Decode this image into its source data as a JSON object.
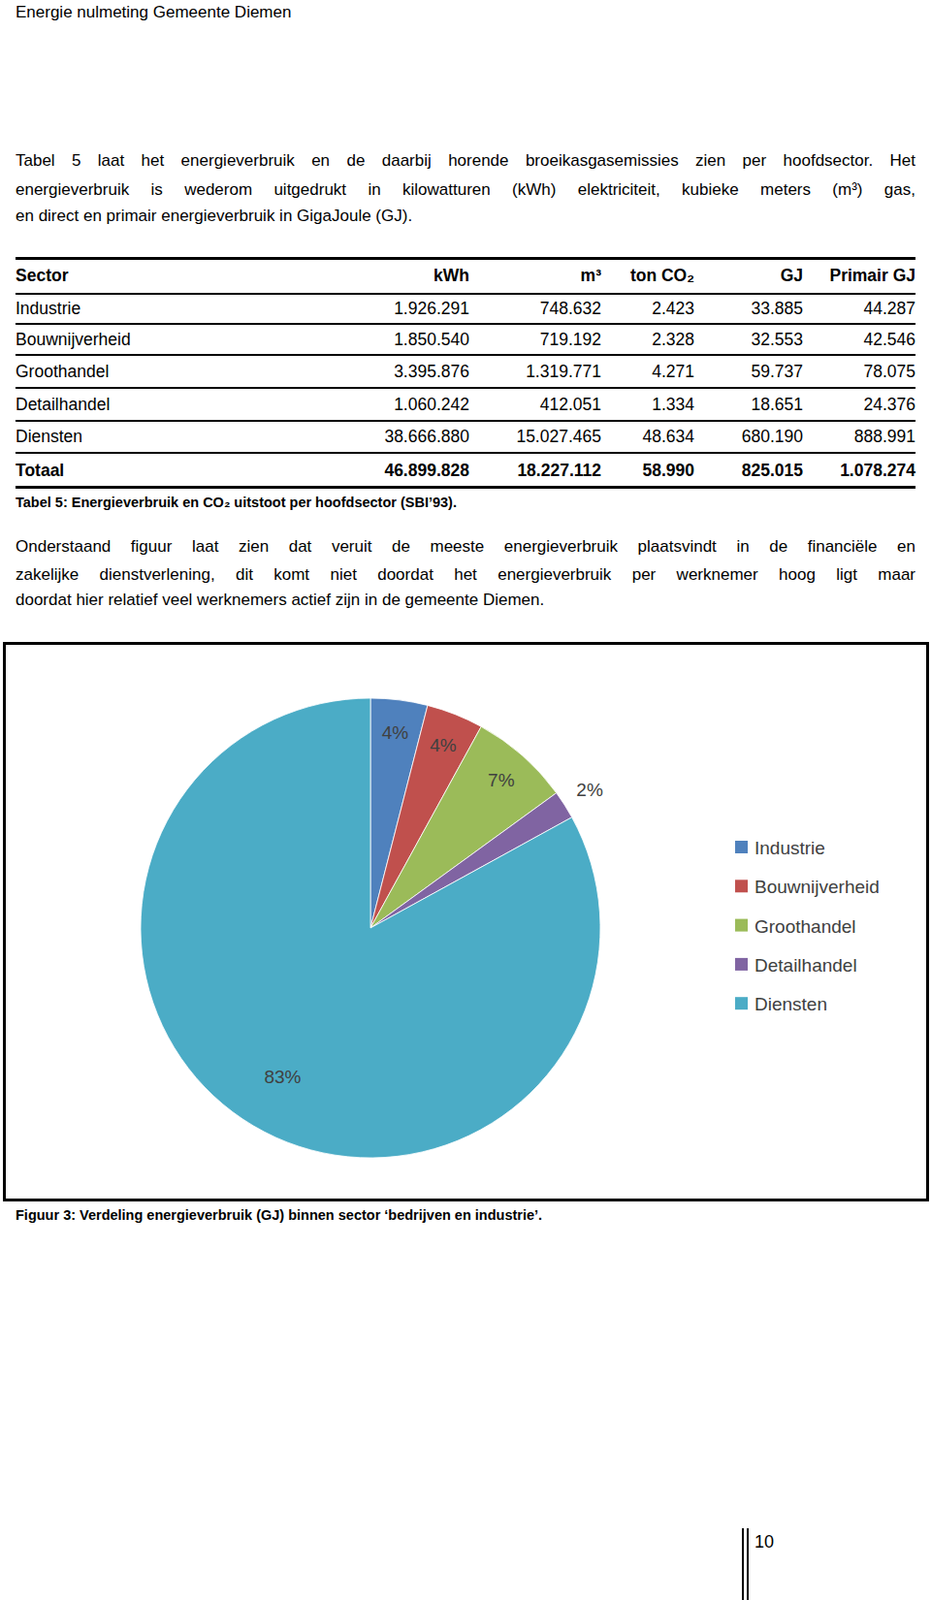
{
  "header": "Energie nulmeting Gemeente Diemen",
  "intro": [
    "Tabel 5 laat het energieverbruik en de daarbij horende broeikasgasemissies zien per hoofdsector. Het",
    "energieverbruik is wederom uitgedrukt in kilowatturen (kWh) elektriciteit, kubieke meters (m³) gas,",
    "en direct en primair energieverbruik in GigaJoule (GJ)."
  ],
  "table": {
    "columns": [
      "Sector",
      "kWh",
      "m³",
      "ton CO₂",
      "GJ",
      "Primair GJ"
    ],
    "rows": [
      [
        "Industrie",
        "1.926.291",
        "748.632",
        "2.423",
        "33.885",
        "44.287"
      ],
      [
        "Bouwnijverheid",
        "1.850.540",
        "719.192",
        "2.328",
        "32.553",
        "42.546"
      ],
      [
        "Groothandel",
        "3.395.876",
        "1.319.771",
        "4.271",
        "59.737",
        "78.075"
      ],
      [
        "Detailhandel",
        "1.060.242",
        "412.051",
        "1.334",
        "18.651",
        "24.376"
      ],
      [
        "Diensten",
        "38.666.880",
        "15.027.465",
        "48.634",
        "680.190",
        "888.991"
      ]
    ],
    "total": [
      "Totaal",
      "46.899.828",
      "18.227.112",
      "58.990",
      "825.015",
      "1.078.274"
    ],
    "caption": "Tabel 5: Energieverbruik en CO₂ uitstoot per hoofdsector (SBI’93)."
  },
  "paragraph": [
    "Onderstaand figuur laat zien dat veruit de meeste energieverbruik plaatsvindt in de financiële en",
    "zakelijke dienstverlening, dit komt niet doordat het energieverbruik per werknemer hoog ligt maar",
    "doordat hier relatief veel werknemers actief zijn in de gemeente Diemen."
  ],
  "chart_data": {
    "type": "pie",
    "categories": [
      "Industrie",
      "Bouwnijverheid",
      "Groothandel",
      "Detailhandel",
      "Diensten"
    ],
    "values": [
      4,
      4,
      7,
      2,
      83
    ],
    "value_labels": [
      "4%",
      "4%",
      "7%",
      "2%",
      "83%"
    ],
    "colors": [
      "#4f81bd",
      "#c0504d",
      "#9bbb59",
      "#8064a2",
      "#4bacc6"
    ],
    "data_labels": true,
    "legend": "right"
  },
  "figure_caption": "Figuur 3: Verdeling energieverbruik (GJ) binnen sector ‘bedrijven en industrie’.",
  "page_number": "10"
}
